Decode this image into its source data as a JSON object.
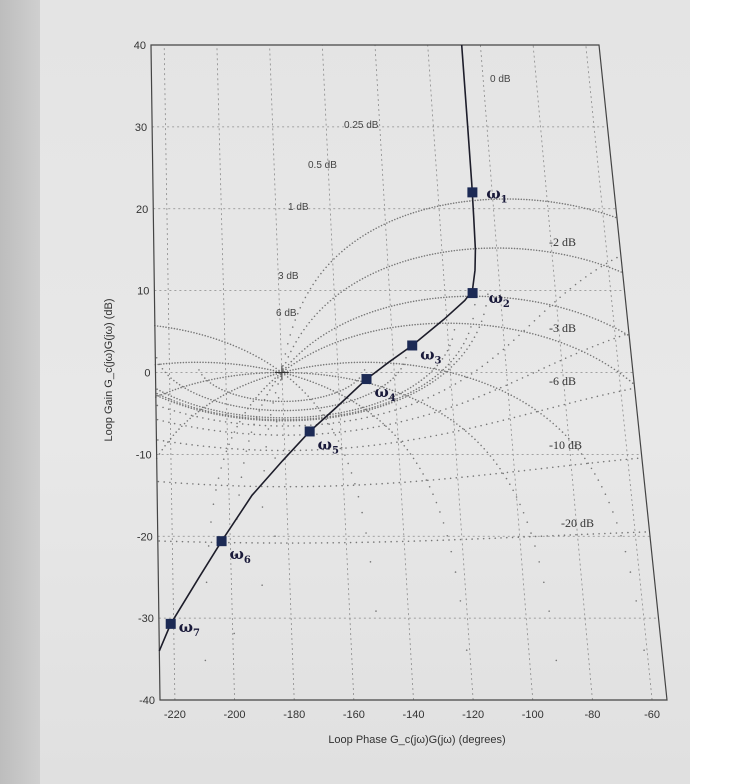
{
  "chart_data": {
    "type": "line",
    "title": "",
    "xlabel": "Loop Phase G_c(jω)G(jω) (degrees)",
    "ylabel": "Loop Gain G_c(jω)G(jω) (dB)",
    "xlim": [
      -225,
      -55
    ],
    "ylim": [
      -40,
      40
    ],
    "x_ticks": [
      -220,
      -200,
      -180,
      -160,
      -140,
      -120,
      -100,
      -80,
      -60
    ],
    "y_ticks": [
      40,
      30,
      20,
      10,
      0,
      -10,
      -20,
      -30,
      -40
    ],
    "grid": true,
    "series": [
      {
        "name": "",
        "x": [
          -225,
          -221,
          -211,
          -203,
          -192,
          -181,
          -171,
          -161,
          -150,
          -142,
          -133,
          -121,
          -113,
          -110,
          -108.5,
          -107.8,
          -107.5,
          -107.3,
          -107.2,
          -107.1
        ],
        "y": [
          -34,
          -30.7,
          -25,
          -20.6,
          -15,
          -10.8,
          -7.2,
          -4.2,
          -0.8,
          1.2,
          3.3,
          6.5,
          8.8,
          10,
          12.5,
          15,
          19,
          23,
          30,
          40
        ]
      }
    ],
    "markers": [
      {
        "label": "ω",
        "sub": "1",
        "x": -107.3,
        "y": 22
      },
      {
        "label": "ω",
        "sub": "2",
        "x": -110,
        "y": 9.7
      },
      {
        "label": "ω",
        "sub": "3",
        "x": -133,
        "y": 3.3
      },
      {
        "label": "ω",
        "sub": "4",
        "x": -150,
        "y": -0.8
      },
      {
        "label": "ω",
        "sub": "5",
        "x": -171,
        "y": -7.2
      },
      {
        "label": "ω",
        "sub": "6",
        "x": -203,
        "y": -20.6
      },
      {
        "label": "ω",
        "sub": "7",
        "x": -221,
        "y": -30.7
      }
    ],
    "m_contour_labels": [
      "0 dB",
      "0.25 dB",
      "0.5 dB",
      "1 dB",
      "3 dB",
      "6 dB"
    ],
    "n_contour_labels": [
      "-2 dB",
      "-3 dB",
      "-6 dB",
      "-10 dB",
      "-20 dB"
    ],
    "origin_marker": {
      "x": -180,
      "y": 0
    }
  }
}
